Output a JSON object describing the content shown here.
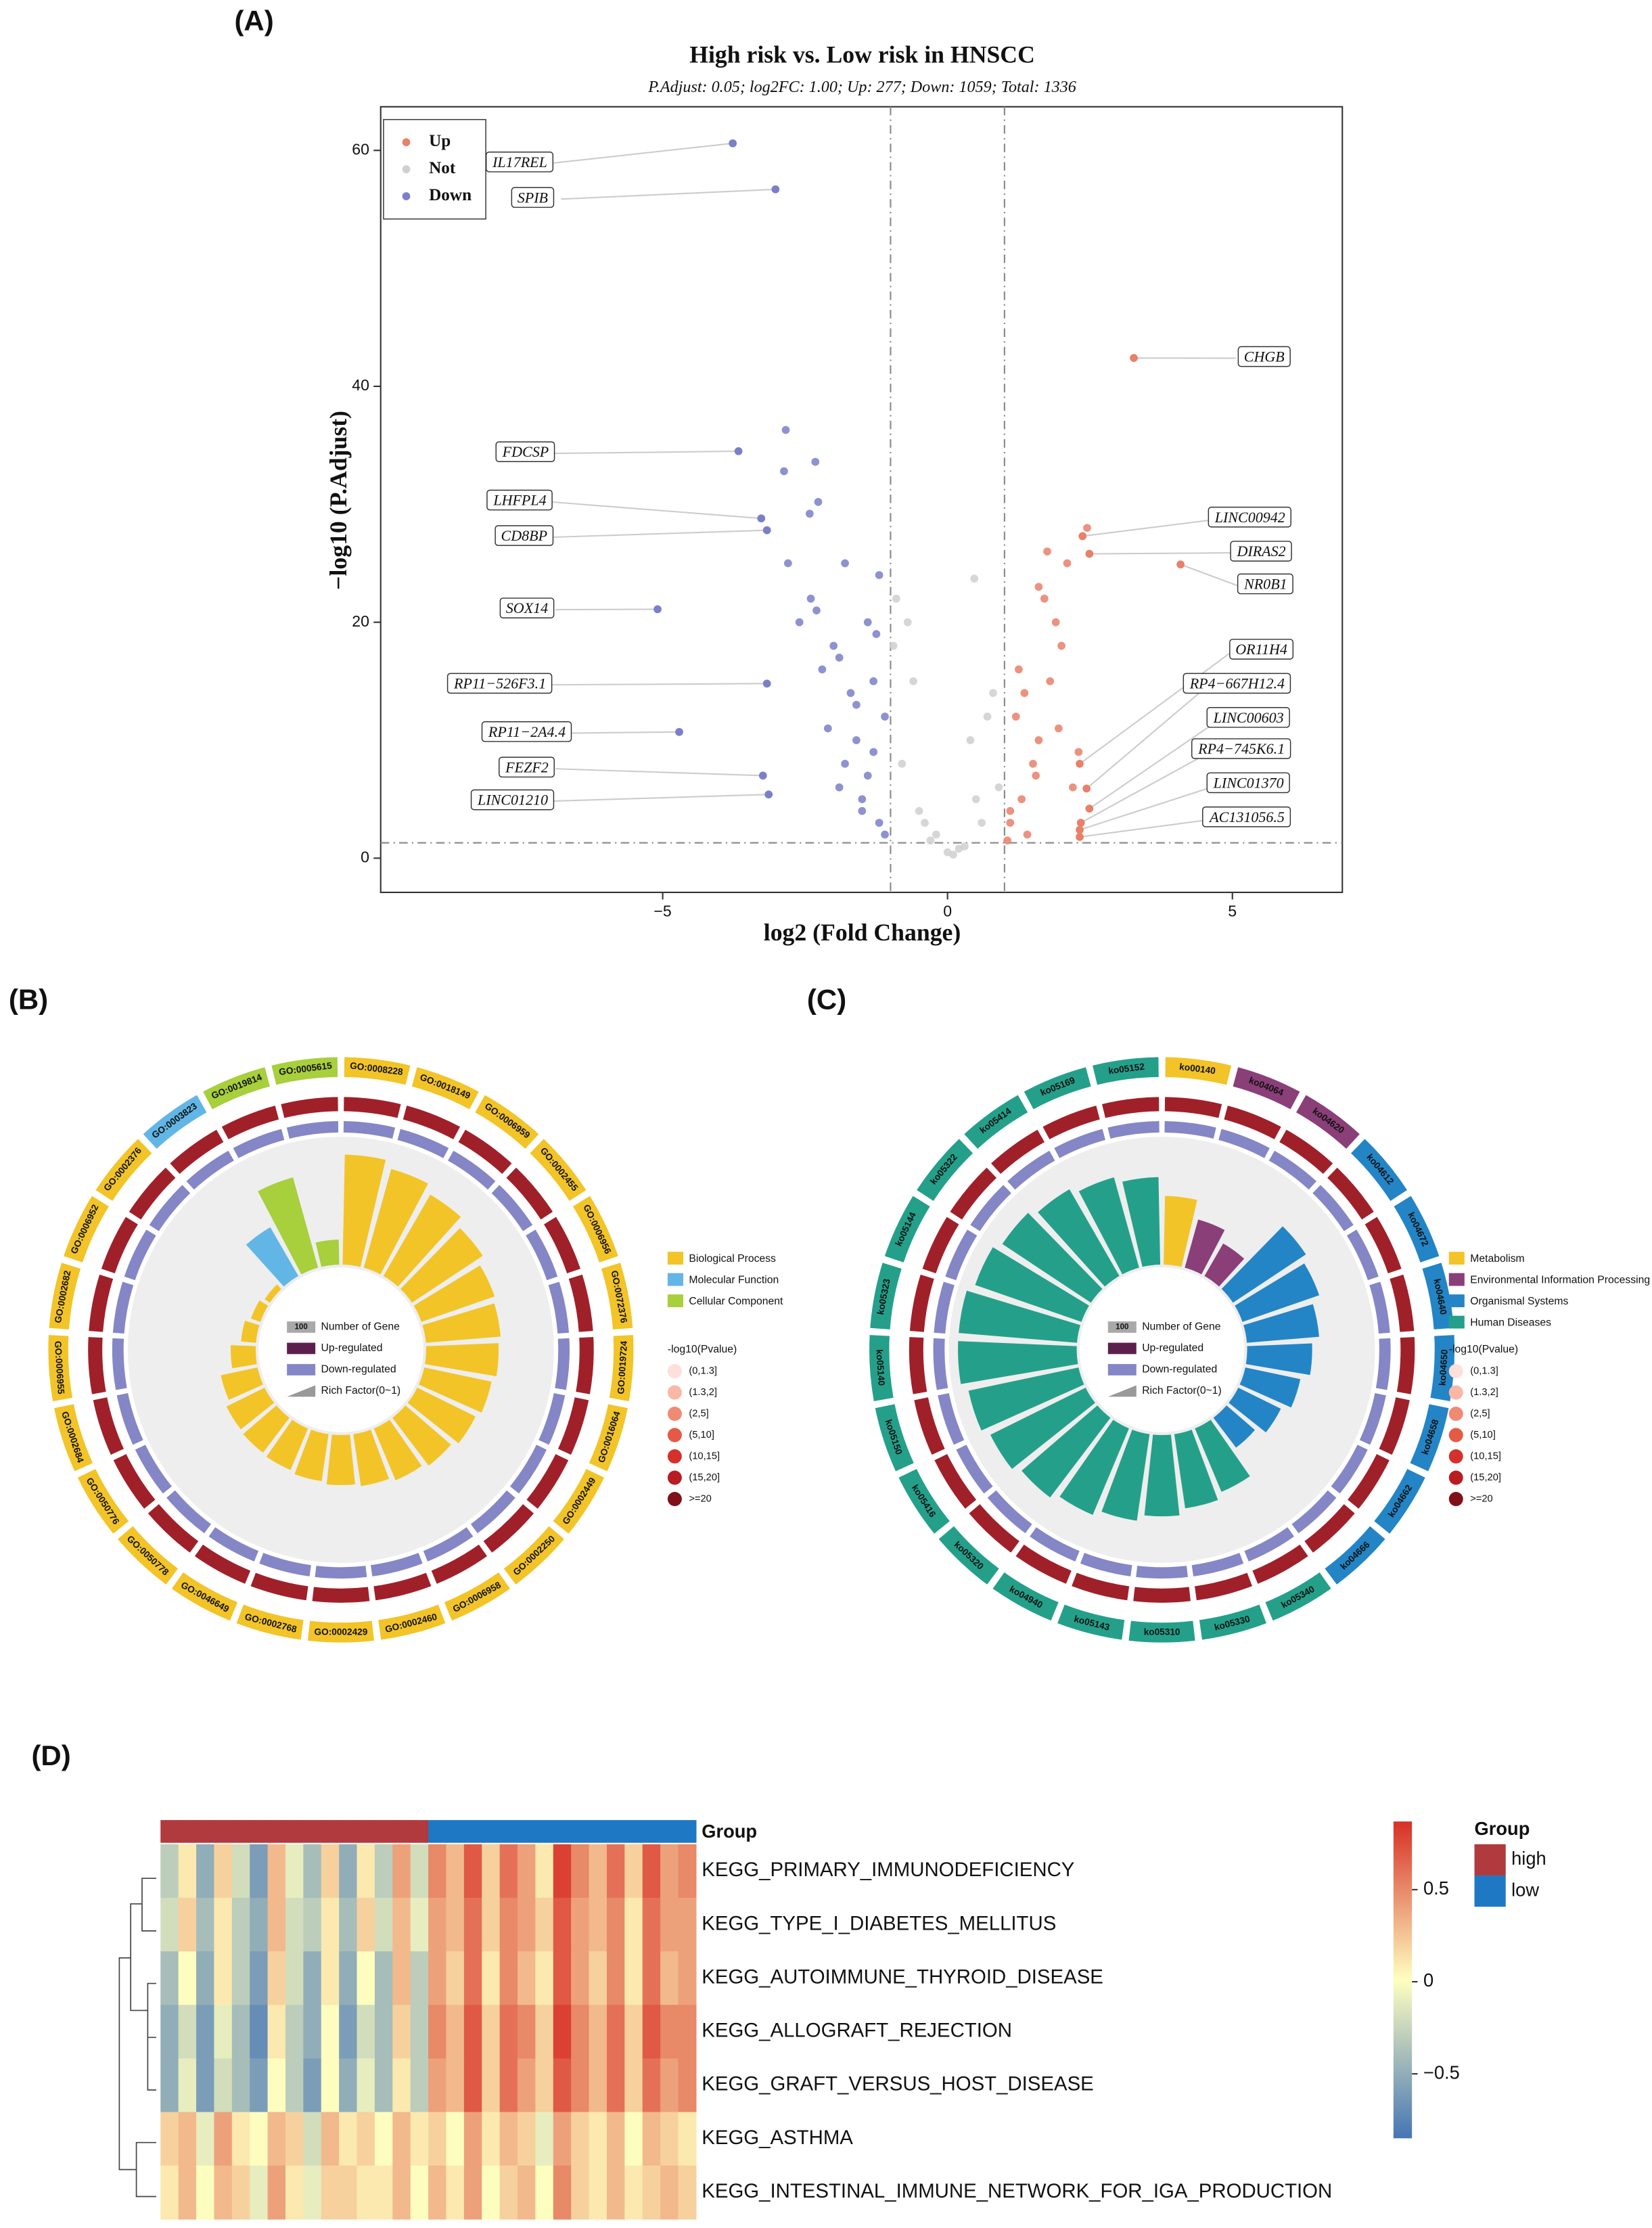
{
  "chart_data": [
    {
      "type": "volcano",
      "panel": "(A)",
      "title": "High risk vs. Low risk in HNSCC",
      "subtitle": "P.Adjust:  0.05; log2FC: 1.00; Up: 277; Down: 1059; Total: 1336",
      "x_label": "log2 (Fold Change)",
      "y_label": "−log10 (P.Adjust)",
      "xlim": [
        -9.95,
        6.93
      ],
      "ylim": [
        -2.9,
        63.7
      ],
      "xticks": [
        {
          "value": -5,
          "label": "−5"
        },
        0,
        5
      ],
      "yticks": [
        0,
        20,
        40,
        60
      ],
      "x_thresholds": [
        -1,
        1
      ],
      "y_threshold": 1.3,
      "series": [
        {
          "name": "Up",
          "color": "#e8806a",
          "x": [
            1.1,
            1.3,
            1.5,
            1.2,
            1.8,
            2.0,
            1.4,
            1.6,
            1.9,
            2.2,
            1.1,
            1.7,
            2.1,
            1.35,
            1.55,
            2.3,
            1.05,
            1.95,
            1.75,
            2.45,
            1.25,
            1.6
          ],
          "y": [
            3,
            5,
            8,
            12,
            15,
            18,
            2,
            10,
            20,
            6,
            4,
            22,
            25,
            14,
            7,
            9,
            1.5,
            11,
            26,
            28,
            16,
            23
          ]
        },
        {
          "name": "Not",
          "color": "#cfcfcf",
          "x": [
            -0.8,
            -0.5,
            -0.2,
            0,
            0.3,
            0.6,
            0.9,
            -0.6,
            0.4,
            -0.3,
            0.7,
            -0.9,
            0.2,
            0.5,
            -0.4,
            0.1,
            -0.7,
            0.8,
            0.47,
            -0.95
          ],
          "y": [
            8,
            4,
            2,
            0.5,
            1,
            3,
            6,
            15,
            10,
            1.5,
            12,
            22,
            0.8,
            5,
            3,
            0.3,
            20,
            14,
            23.7,
            18
          ]
        },
        {
          "name": "Down",
          "color": "#7a7fc8",
          "x": [
            -1.2,
            -1.5,
            -1.8,
            -1.1,
            -1.3,
            -2.0,
            -1.6,
            -1.4,
            -2.4,
            -1.9,
            -1.2,
            -1.7,
            -2.2,
            -1.3,
            -1.5,
            -2.6,
            -1.1,
            -1.8,
            -2.1,
            -1.4,
            -2.8,
            -1.6,
            -1.25,
            -2.3,
            -1.9,
            -2.42,
            -2.27,
            -2.32,
            -2.84,
            -2.87
          ],
          "y": [
            3,
            5,
            8,
            12,
            15,
            18,
            10,
            20,
            22,
            6,
            24,
            14,
            16,
            9,
            4,
            20,
            2,
            25,
            11,
            7,
            25,
            13,
            19,
            21,
            17,
            29.2,
            30.2,
            33.6,
            36.3,
            32.8
          ]
        }
      ],
      "labeled": {
        "names": [
          "IL17REL",
          "SPIB",
          "CHGB",
          "FDCSP",
          "LHFPL4",
          "CD8BP",
          "SOX14",
          "RP11−526F3.1",
          "RP11−2A4.4",
          "FEZF2",
          "LINC01210",
          "LINC00942",
          "DIRAS2",
          "NR0B1",
          "OR11H4",
          "RP4−667H12.4",
          "LINC00603",
          "RP4−745K6.1",
          "LINC01370",
          "AC131056.5"
        ],
        "x": [
          -3.77,
          -3.02,
          3.27,
          -3.67,
          -3.27,
          -3.17,
          -5.09,
          -3.17,
          -4.71,
          -3.24,
          -3.14,
          2.37,
          2.49,
          4.09,
          2.32,
          2.44,
          2.49,
          2.34,
          2.32,
          2.32
        ],
        "y": [
          60.6,
          56.7,
          42.4,
          34.5,
          28.8,
          27.8,
          21.1,
          14.8,
          10.7,
          7.0,
          5.4,
          27.3,
          25.8,
          24.9,
          8.0,
          5.9,
          4.2,
          3.0,
          2.4,
          1.8
        ]
      }
    },
    {
      "type": "circos",
      "panel": "(B)",
      "terms": [
        "GO:0008228",
        "GO:0018149",
        "GO:0006959",
        "GO:0002455",
        "GO:0006956",
        "GO:0072376",
        "GO:0019724",
        "GO:0016064",
        "GO:0002449",
        "GO:0002250",
        "GO:0006958",
        "GO:0002460",
        "GO:0002429",
        "GO:0002768",
        "GO:0046649",
        "GO:0050778",
        "GO:0050776",
        "GO:0002684",
        "GO:0006955",
        "GO:0002682",
        "GO:0006952",
        "GO:0002376",
        "GO:0003823",
        "GO:0019814",
        "GO:0005615"
      ],
      "term_category": [
        0,
        0,
        0,
        0,
        0,
        0,
        0,
        0,
        0,
        0,
        0,
        0,
        0,
        0,
        0,
        0,
        0,
        0,
        0,
        0,
        0,
        0,
        1,
        2,
        2
      ],
      "rich_factor": [
        0.88,
        0.82,
        0.75,
        0.68,
        0.62,
        0.6,
        0.58,
        0.55,
        0.52,
        0.48,
        0.45,
        0.42,
        0.4,
        0.38,
        0.36,
        0.35,
        0.34,
        0.3,
        0.2,
        0.12,
        0.08,
        0.05,
        0.45,
        0.75,
        0.2
      ],
      "categories": [
        "Biological Process",
        "Molecular Function",
        "Cellular Component"
      ],
      "category_colors": [
        "#f2c428",
        "#62b6e6",
        "#a8cf3c"
      ],
      "track_legend": [
        "Number of Gene",
        "Up-regulated",
        "Down-regulated",
        "Rich Factor(0~1)"
      ],
      "track_colors": [
        "#a9a9a9",
        "#5c1f4d",
        "#8586c6",
        "#999999"
      ],
      "badge": 100,
      "pvalue_title": "-log10(Pvalue)",
      "pvalue_bins": [
        "(0,1.3]",
        "(1.3,2]",
        "(2,5]",
        "(5,10]",
        "(10,15]",
        "(15,20]",
        ">=20"
      ],
      "pvalue_colors": [
        "#fde0d9",
        "#f9b7a6",
        "#f08a73",
        "#e55a45",
        "#d4312c",
        "#b81d23",
        "#7f1018"
      ]
    },
    {
      "type": "circos",
      "panel": "(C)",
      "terms": [
        "ko00140",
        "ko04064",
        "ko04620",
        "ko04612",
        "ko04672",
        "ko04640",
        "ko04650",
        "ko04658",
        "ko04662",
        "ko04666",
        "ko05340",
        "ko05330",
        "ko05310",
        "ko05143",
        "ko04940",
        "ko05320",
        "ko05416",
        "ko05150",
        "ko05140",
        "ko05323",
        "ko05144",
        "ko05322",
        "ko05414",
        "ko05169",
        "ko05152"
      ],
      "term_category": [
        0,
        1,
        1,
        2,
        2,
        2,
        2,
        2,
        2,
        2,
        3,
        3,
        3,
        3,
        3,
        3,
        3,
        3,
        3,
        3,
        3,
        3,
        3,
        3,
        3
      ],
      "rich_factor": [
        0.55,
        0.4,
        0.3,
        0.7,
        0.65,
        0.58,
        0.52,
        0.45,
        0.38,
        0.3,
        0.55,
        0.6,
        0.65,
        0.7,
        0.75,
        0.8,
        0.85,
        0.9,
        0.95,
        0.95,
        0.9,
        0.85,
        0.8,
        0.75,
        0.7
      ],
      "categories": [
        "Metabolism",
        "Environmental Information Processing",
        "Organismal Systems",
        "Human Diseases"
      ],
      "category_colors": [
        "#f2c428",
        "#8a3f78",
        "#2385c6",
        "#24a08a"
      ],
      "track_legend": [
        "Number of Gene",
        "Up-regulated",
        "Down-regulated",
        "Rich Factor(0~1)"
      ],
      "track_colors": [
        "#a9a9a9",
        "#5c1f4d",
        "#8586c6",
        "#999999"
      ],
      "badge": 100,
      "pvalue_title": "-log10(Pvalue)",
      "pvalue_bins": [
        "(0,1.3]",
        "(1.3,2]",
        "(2,5]",
        "(5,10]",
        "(10,15]",
        "(15,20]",
        ">=20"
      ],
      "pvalue_colors": [
        "#fde0d9",
        "#f9b7a6",
        "#f08a73",
        "#e55a45",
        "#d4312c",
        "#b81d23",
        "#7f1018"
      ]
    },
    {
      "type": "heatmap",
      "panel": "(D)",
      "group_title": "Group",
      "group_names": [
        "high",
        "low"
      ],
      "group_colors": [
        "#b03a3e",
        "#1f78c4"
      ],
      "column_group": [
        0,
        0,
        0,
        0,
        0,
        0,
        0,
        0,
        0,
        0,
        0,
        0,
        0,
        0,
        0,
        1,
        1,
        1,
        1,
        1,
        1,
        1,
        1,
        1,
        1,
        1,
        1,
        1,
        1,
        1
      ],
      "rows": [
        "KEGG_PRIMARY_IMMUNODEFICIENCY",
        "KEGG_TYPE_I_DIABETES_MELLITUS",
        "KEGG_AUTOIMMUNE_THYROID_DISEASE",
        "KEGG_ALLOGRAFT_REJECTION",
        "KEGG_GRAFT_VERSUS_HOST_DISEASE",
        "KEGG_ASTHMA",
        "KEGG_INTESTINAL_IMMUNE_NETWORK_FOR_IGA_PRODUCTION"
      ],
      "values": [
        [
          -0.3,
          0.1,
          -0.5,
          0.2,
          -0.2,
          -0.6,
          0.3,
          -0.1,
          -0.4,
          0.2,
          -0.5,
          0.1,
          -0.3,
          0.4,
          -0.2,
          0.5,
          0.3,
          0.7,
          0.2,
          0.6,
          0.4,
          0.1,
          0.8,
          0.5,
          0.3,
          0.6,
          0.2,
          0.7,
          0.4,
          0.5
        ],
        [
          -0.2,
          0.2,
          -0.4,
          0.1,
          -0.3,
          -0.5,
          0.3,
          -0.2,
          -0.3,
          0.1,
          -0.4,
          0.2,
          -0.2,
          0.3,
          -0.1,
          0.4,
          0.3,
          0.6,
          0.2,
          0.5,
          0.4,
          0.2,
          0.7,
          0.4,
          0.3,
          0.5,
          0.1,
          0.6,
          0.4,
          0.4
        ],
        [
          -0.4,
          0.0,
          -0.5,
          0.1,
          -0.3,
          -0.6,
          0.2,
          -0.2,
          -0.5,
          0.1,
          -0.5,
          0.0,
          -0.4,
          0.3,
          -0.3,
          0.4,
          0.2,
          0.6,
          0.1,
          0.5,
          0.3,
          0.1,
          0.7,
          0.4,
          0.2,
          0.5,
          0.1,
          0.6,
          0.3,
          0.4
        ],
        [
          -0.5,
          -0.2,
          -0.6,
          -0.1,
          -0.4,
          -0.7,
          0.1,
          -0.3,
          -0.5,
          0.0,
          -0.6,
          -0.2,
          -0.4,
          0.2,
          -0.3,
          0.5,
          0.3,
          0.7,
          0.2,
          0.6,
          0.5,
          0.2,
          0.8,
          0.5,
          0.3,
          0.6,
          0.2,
          0.7,
          0.5,
          0.5
        ],
        [
          -0.5,
          -0.1,
          -0.6,
          -0.2,
          -0.4,
          -0.6,
          0.0,
          -0.3,
          -0.6,
          0.0,
          -0.5,
          -0.1,
          -0.4,
          0.1,
          -0.3,
          0.4,
          0.3,
          0.7,
          0.2,
          0.6,
          0.4,
          0.2,
          0.7,
          0.5,
          0.3,
          0.6,
          0.2,
          0.6,
          0.4,
          0.5
        ],
        [
          0.2,
          0.3,
          -0.1,
          0.4,
          0.1,
          0.0,
          0.3,
          0.2,
          -0.2,
          0.3,
          0.1,
          0.2,
          0.0,
          0.3,
          0.1,
          0.2,
          0.0,
          0.4,
          0.1,
          0.3,
          0.2,
          -0.1,
          0.4,
          0.2,
          0.1,
          0.3,
          0.0,
          0.3,
          0.2,
          0.1
        ],
        [
          0.1,
          0.3,
          0.0,
          0.3,
          0.2,
          -0.1,
          0.4,
          0.1,
          -0.1,
          0.2,
          0.2,
          0.1,
          0.1,
          0.3,
          0.0,
          0.3,
          0.1,
          0.4,
          0.0,
          0.2,
          0.3,
          0.0,
          0.5,
          0.2,
          0.1,
          0.3,
          0.1,
          0.2,
          0.3,
          0.2
        ]
      ],
      "clim": [
        -0.85,
        0.87
      ],
      "colormap": [
        "#4575b4",
        "#ffffbf",
        "#d73027"
      ],
      "cticks": [
        {
          "value": -0.5,
          "label": "−0.5"
        },
        0,
        0.5
      ]
    }
  ]
}
